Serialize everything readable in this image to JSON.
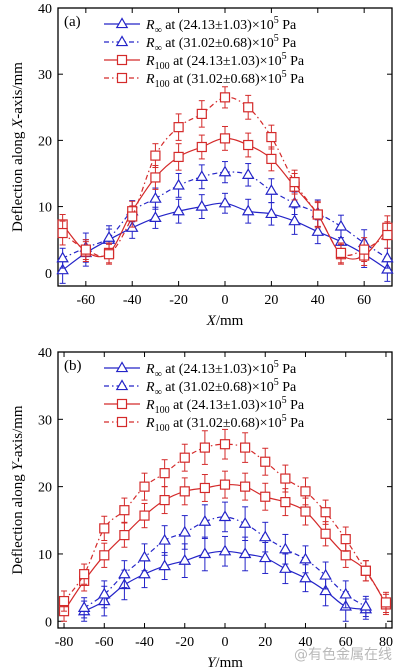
{
  "watermark": "@有色金属在线",
  "colors": {
    "blue": "#2424c8",
    "red": "#d42a2a",
    "axis": "#000000"
  },
  "chart_data": [
    {
      "type": "line",
      "panel_label": "(a)",
      "xlabel": {
        "var": "X",
        "unit": "/mm"
      },
      "ylabel": {
        "pre": "Deflection along ",
        "var": "X",
        "post": "-axis/mm"
      },
      "xlim": [
        -72,
        72
      ],
      "ylim": [
        -2,
        40
      ],
      "xticks": [
        -60,
        -40,
        -20,
        0,
        20,
        40,
        60
      ],
      "yticks": [
        0,
        10,
        20,
        30,
        40
      ],
      "x": [
        -70,
        -60,
        -50,
        -40,
        -30,
        -20,
        -10,
        0,
        10,
        20,
        30,
        40,
        50,
        60,
        70
      ],
      "series": [
        {
          "sym": "R",
          "sub": "∞",
          "label": " at (24.13±1.03)×10",
          "exp": "5",
          "unit": " Pa",
          "color": "#2424c8",
          "marker": "triangle",
          "dash": "",
          "values": [
            0.4,
            3.0,
            5.0,
            6.8,
            8.3,
            9.3,
            10.0,
            10.5,
            9.3,
            8.9,
            7.8,
            6.2,
            4.7,
            2.8,
            0.5
          ],
          "errors": [
            2.0,
            2.0,
            1.6,
            1.6,
            1.6,
            1.8,
            1.8,
            1.5,
            1.8,
            1.7,
            2.0,
            1.8,
            1.8,
            2.0,
            1.8
          ]
        },
        {
          "sym": "R",
          "sub": "∞",
          "label": " at (31.02±0.68)×10",
          "exp": "5",
          "unit": " Pa",
          "color": "#2424c8",
          "marker": "triangle",
          "dash": "5,3,1.5,3",
          "values": [
            2.2,
            3.8,
            5.3,
            9.3,
            11.2,
            13.2,
            14.5,
            15.2,
            14.8,
            12.4,
            10.5,
            9.0,
            7.0,
            4.5,
            2.2
          ],
          "errors": [
            1.5,
            2.2,
            1.8,
            1.6,
            1.6,
            1.8,
            1.8,
            1.6,
            1.7,
            1.8,
            1.7,
            2.0,
            1.7,
            2.0,
            1.5
          ]
        },
        {
          "sym": "R",
          "sub": "100",
          "label": " at (24.13±1.03)×10",
          "exp": "5",
          "unit": " Pa",
          "color": "#d42a2a",
          "marker": "square",
          "dash": "",
          "values": [
            7.3,
            3.2,
            3.0,
            9.3,
            14.4,
            17.5,
            19.0,
            20.3,
            19.3,
            17.2,
            13.0,
            8.8,
            2.8,
            2.6,
            6.8
          ],
          "errors": [
            1.5,
            1.5,
            1.5,
            1.5,
            1.8,
            2.0,
            1.8,
            1.8,
            1.8,
            1.8,
            2.0,
            1.8,
            1.5,
            1.5,
            1.8
          ]
        },
        {
          "sym": "R",
          "sub": "100",
          "label": " at (31.02±0.68)×10",
          "exp": "5",
          "unit": " Pa",
          "color": "#d42a2a",
          "marker": "square",
          "dash": "5,3,1.5,3",
          "values": [
            6.0,
            3.5,
            2.8,
            8.5,
            17.7,
            22.0,
            24.0,
            26.5,
            25.0,
            20.5,
            13.7,
            8.8,
            3.0,
            3.5,
            5.7
          ],
          "errors": [
            1.8,
            1.5,
            1.5,
            1.6,
            1.8,
            2.0,
            2.0,
            1.6,
            1.8,
            1.8,
            1.8,
            2.0,
            1.5,
            1.8,
            2.0
          ]
        }
      ]
    },
    {
      "type": "line",
      "panel_label": "(b)",
      "xlabel": {
        "var": "Y",
        "unit": "/mm"
      },
      "ylabel": {
        "pre": "Deflection along ",
        "var": "Y",
        "post": "-axis/mm"
      },
      "xlim": [
        -83,
        83
      ],
      "ylim": [
        -1,
        40
      ],
      "xticks": [
        -80,
        -60,
        -40,
        -20,
        0,
        20,
        40,
        60,
        80
      ],
      "yticks": [
        0,
        10,
        20,
        30,
        40
      ],
      "x": [
        -80,
        -70,
        -60,
        -50,
        -40,
        -30,
        -20,
        -10,
        0,
        10,
        20,
        30,
        40,
        50,
        60,
        70,
        80
      ],
      "series": [
        {
          "sym": "R",
          "sub": "∞",
          "label": " at (24.13±1.03)×10",
          "exp": "5",
          "unit": " Pa",
          "color": "#2424c8",
          "marker": "triangle",
          "dash": "",
          "values": [
            null,
            1.5,
            3.0,
            5.4,
            7.0,
            8.2,
            9.0,
            10.0,
            10.4,
            10.0,
            9.4,
            7.8,
            6.4,
            4.5,
            2.2,
            1.8,
            null
          ],
          "errors": [
            0,
            1.5,
            2.2,
            2.2,
            2.0,
            2.0,
            2.5,
            2.5,
            2.2,
            2.5,
            2.3,
            2.2,
            2.0,
            2.2,
            2.2,
            1.5,
            0
          ]
        },
        {
          "sym": "R",
          "sub": "∞",
          "label": " at (31.02±0.68)×10",
          "exp": "5",
          "unit": " Pa",
          "color": "#2424c8",
          "marker": "triangle",
          "dash": "5,3,1.5,3",
          "values": [
            null,
            2.0,
            4.0,
            7.0,
            9.5,
            12.0,
            13.2,
            14.8,
            15.5,
            14.5,
            12.5,
            10.7,
            9.2,
            6.8,
            4.0,
            2.2,
            null
          ],
          "errors": [
            0,
            1.5,
            2.0,
            2.0,
            2.0,
            2.2,
            2.5,
            2.5,
            2.2,
            2.5,
            2.2,
            2.2,
            2.0,
            2.0,
            2.0,
            1.5,
            0
          ]
        },
        {
          "sym": "R",
          "sub": "100",
          "label": " at (24.13±1.03)×10",
          "exp": "5",
          "unit": " Pa",
          "color": "#d42a2a",
          "marker": "square",
          "dash": "",
          "values": [
            1.5,
            6.0,
            9.8,
            12.8,
            15.7,
            18.0,
            19.3,
            19.8,
            20.3,
            20.0,
            18.5,
            17.7,
            16.3,
            13.0,
            9.8,
            7.5,
            2.5
          ],
          "errors": [
            1.5,
            1.5,
            1.8,
            1.8,
            1.8,
            2.0,
            2.0,
            2.0,
            2.0,
            2.0,
            2.0,
            2.0,
            2.0,
            1.8,
            1.8,
            1.5,
            1.5
          ]
        },
        {
          "sym": "R",
          "sub": "100",
          "label": " at (31.02±0.68)×10",
          "exp": "5",
          "unit": " Pa",
          "color": "#d42a2a",
          "marker": "square",
          "dash": "5,3,1.5,3",
          "values": [
            3.0,
            7.0,
            13.8,
            16.5,
            20.0,
            22.0,
            24.3,
            25.8,
            26.3,
            25.8,
            23.7,
            21.2,
            19.3,
            16.2,
            12.2,
            7.5,
            2.8
          ],
          "errors": [
            1.5,
            1.5,
            1.8,
            1.8,
            2.0,
            2.0,
            2.0,
            2.5,
            2.2,
            2.2,
            2.0,
            2.0,
            2.0,
            1.8,
            1.8,
            1.5,
            1.5
          ]
        }
      ]
    }
  ]
}
